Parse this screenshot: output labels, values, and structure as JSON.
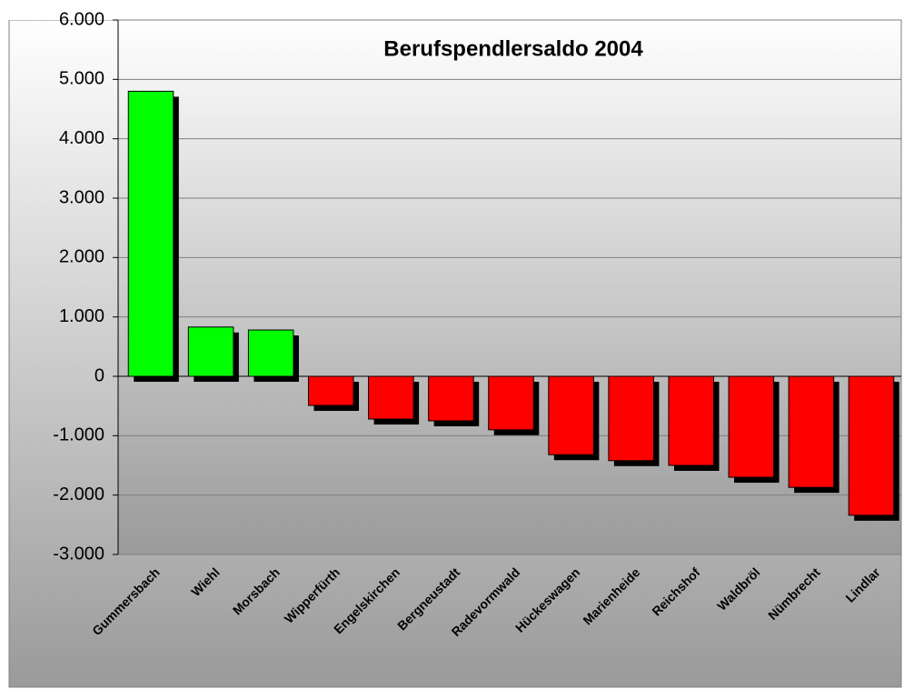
{
  "chart_data": {
    "type": "bar",
    "title": "Berufspendlersaldo 2004",
    "categories": [
      "Gummersbach",
      "Wiehl",
      "Morsbach",
      "Wipperfürth",
      "Engelskirchen",
      "Bergneustadt",
      "Radevormwald",
      "Hückeswagen",
      "Marienheide",
      "Reichshof",
      "Waldbröl",
      "Nümbrecht",
      "Lindlar"
    ],
    "values": [
      4800,
      830,
      780,
      -490,
      -720,
      -750,
      -900,
      -1320,
      -1420,
      -1500,
      -1700,
      -1870,
      -2340
    ],
    "colors": [
      "#00ff00",
      "#00ff00",
      "#00ff00",
      "#ff0000",
      "#ff0000",
      "#ff0000",
      "#ff0000",
      "#ff0000",
      "#ff0000",
      "#ff0000",
      "#ff0000",
      "#ff0000",
      "#ff0000"
    ],
    "ylim": [
      -3000,
      6000
    ],
    "yticks": [
      {
        "value": -3000,
        "label": "-3.000"
      },
      {
        "value": -2000,
        "label": "-2.000"
      },
      {
        "value": -1000,
        "label": "-1.000"
      },
      0,
      {
        "value": 1000,
        "label": "1.000"
      },
      {
        "value": 2000,
        "label": "2.000"
      },
      {
        "value": 3000,
        "label": "3.000"
      },
      {
        "value": 4000,
        "label": "4.000"
      },
      {
        "value": 5000,
        "label": "5.000"
      },
      {
        "value": 6000,
        "label": "6.000"
      }
    ],
    "grid": true
  }
}
